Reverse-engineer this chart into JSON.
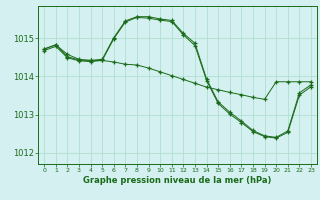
{
  "title": "Graphe pression niveau de la mer (hPa)",
  "bg_color": "#d4f0f0",
  "grid_color": "#aaddcc",
  "line_color": "#1a6b1a",
  "xlim": [
    -0.5,
    23.5
  ],
  "ylim": [
    1011.7,
    1015.85
  ],
  "yticks": [
    1012,
    1013,
    1014,
    1015
  ],
  "xticks": [
    0,
    1,
    2,
    3,
    4,
    5,
    6,
    7,
    8,
    9,
    10,
    11,
    12,
    13,
    14,
    15,
    16,
    17,
    18,
    19,
    20,
    21,
    22,
    23
  ],
  "line1_y": [
    1014.72,
    1014.83,
    1014.58,
    1014.45,
    1014.42,
    1014.42,
    1014.38,
    1014.32,
    1014.3,
    1014.22,
    1014.12,
    1014.02,
    1013.92,
    1013.82,
    1013.72,
    1013.65,
    1013.58,
    1013.52,
    1013.45,
    1013.4,
    1013.86,
    1013.86,
    1013.86,
    1013.86
  ],
  "line2_y": [
    1014.72,
    1014.83,
    1014.52,
    1014.43,
    1014.42,
    1014.45,
    1015.02,
    1015.46,
    1015.57,
    1015.57,
    1015.51,
    1015.47,
    1015.13,
    1014.87,
    1013.93,
    1013.33,
    1013.06,
    1012.83,
    1012.58,
    1012.44,
    1012.4,
    1012.57,
    1013.57,
    1013.78
  ],
  "line3_y": [
    1014.68,
    1014.79,
    1014.49,
    1014.41,
    1014.39,
    1014.42,
    1014.99,
    1015.43,
    1015.55,
    1015.53,
    1015.48,
    1015.44,
    1015.09,
    1014.81,
    1013.89,
    1013.29,
    1013.01,
    1012.79,
    1012.55,
    1012.42,
    1012.38,
    1012.53,
    1013.51,
    1013.73
  ]
}
